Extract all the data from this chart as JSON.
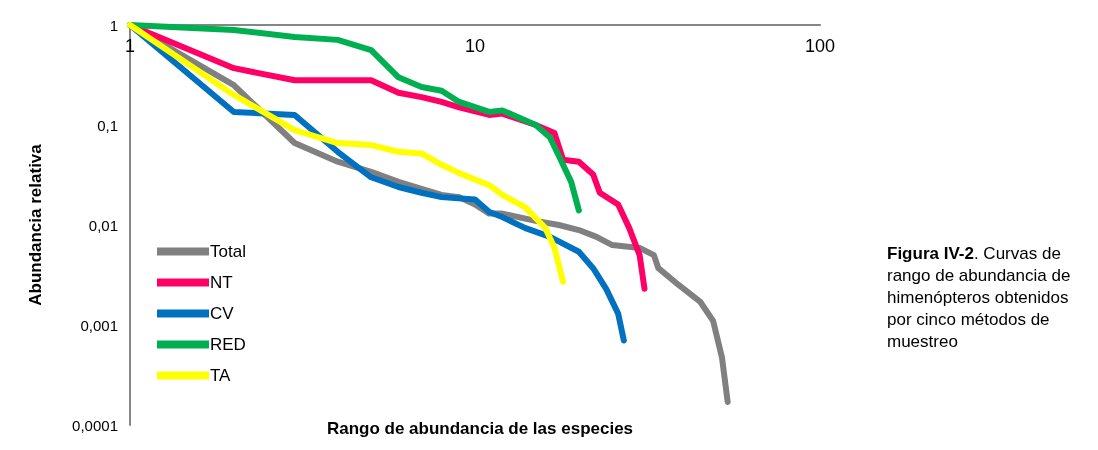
{
  "chart_data": {
    "type": "line",
    "xlabel": "Rango de abundancia de las especies",
    "ylabel": "Abundancia relativa",
    "log": "xy",
    "xlim": [
      1,
      100
    ],
    "ylim": [
      0.0001,
      1
    ],
    "xticks": [
      1,
      10,
      100
    ],
    "yticks": [
      {
        "value": 0.0001,
        "label": "0,0001"
      },
      {
        "value": 0.001,
        "label": "0,001"
      },
      {
        "value": 0.01,
        "label": "0,01"
      },
      {
        "value": 0.1,
        "label": "0,1"
      },
      {
        "value": 1,
        "label": "1"
      }
    ],
    "grid": false,
    "legend": "bottom left",
    "marker": "none",
    "line_style": "solid",
    "annotations": [
      "Figura IV-2. Curvas de rango de abundancia de himenópteros obtenidos por cinco métodos de muestreo"
    ],
    "series": [
      {
        "name": "Total",
        "color": "#808080",
        "x": [
          1,
          2,
          3,
          4,
          5,
          6,
          7,
          8,
          9,
          10,
          11,
          12,
          15,
          17.5,
          20,
          22.5,
          25,
          30,
          33,
          34,
          39,
          45,
          49,
          52,
          54
        ],
        "values": [
          1,
          0.25,
          0.066,
          0.043,
          0.034,
          0.027,
          0.023,
          0.02,
          0.019,
          0.016,
          0.013,
          0.013,
          0.011,
          0.01,
          0.0089,
          0.0076,
          0.0063,
          0.0059,
          0.005,
          0.0037,
          0.0025,
          0.0017,
          0.0011,
          0.00047,
          0.00017
        ]
      },
      {
        "name": "NT",
        "color": "#ff0066",
        "x": [
          1,
          2,
          3,
          4,
          5,
          6,
          7,
          8,
          9,
          11,
          12,
          15,
          17,
          18,
          20,
          22,
          23,
          26,
          28,
          30,
          31
        ],
        "values": [
          1,
          0.37,
          0.28,
          0.28,
          0.28,
          0.21,
          0.19,
          0.17,
          0.15,
          0.126,
          0.13,
          0.1,
          0.083,
          0.045,
          0.043,
          0.032,
          0.021,
          0.016,
          0.0093,
          0.005,
          0.0023
        ]
      },
      {
        "name": "CV",
        "color": "#0070c0",
        "x": [
          1,
          2,
          3,
          4,
          5,
          6,
          7,
          8,
          10,
          11,
          12,
          14,
          16.5,
          20,
          22,
          24,
          26,
          27
        ],
        "values": [
          1,
          0.135,
          0.126,
          0.054,
          0.03,
          0.024,
          0.021,
          0.019,
          0.018,
          0.0135,
          0.012,
          0.0093,
          0.0076,
          0.0054,
          0.0037,
          0.0023,
          0.0013,
          0.0007
        ]
      },
      {
        "name": "RED",
        "color": "#00b050",
        "x": [
          1,
          2,
          3,
          4,
          5,
          6,
          7,
          8,
          9,
          11,
          12,
          15,
          16.5,
          18,
          19,
          20
        ],
        "values": [
          1,
          0.89,
          0.76,
          0.71,
          0.56,
          0.3,
          0.24,
          0.22,
          0.17,
          0.135,
          0.14,
          0.1,
          0.075,
          0.04,
          0.027,
          0.014
        ]
      },
      {
        "name": "TA",
        "color": "#ffff00",
        "x": [
          1,
          2,
          3,
          4,
          5,
          6,
          7,
          8,
          9,
          11,
          12,
          14,
          16,
          17,
          18
        ],
        "values": [
          1,
          0.2,
          0.089,
          0.066,
          0.063,
          0.054,
          0.052,
          0.04,
          0.033,
          0.025,
          0.02,
          0.015,
          0.0093,
          0.0059,
          0.0027
        ]
      }
    ]
  }
}
